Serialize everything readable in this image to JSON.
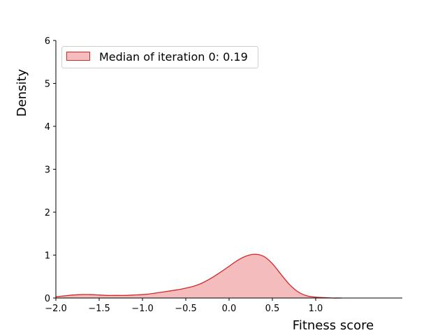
{
  "chart_data": {
    "type": "area",
    "title": "",
    "xlabel": "Fitness score",
    "ylabel": "Density",
    "xlim": [
      -2.0,
      2.0
    ],
    "ylim": [
      0,
      6
    ],
    "x_ticks": [
      "−2.0",
      "−1.5",
      "−1.0",
      "−0.5",
      "0.0",
      "0.5",
      "1.0"
    ],
    "y_ticks": [
      "0",
      "1",
      "2",
      "3",
      "4",
      "5",
      "6"
    ],
    "grid": false,
    "legend_position": "upper left",
    "series": [
      {
        "name": "Median of iteration 0: 0.19",
        "color": "#d62728",
        "fill": "#f4bcbc",
        "x": [
          -2.0,
          -1.9,
          -1.8,
          -1.7,
          -1.6,
          -1.5,
          -1.4,
          -1.3,
          -1.2,
          -1.1,
          -1.0,
          -0.9,
          -0.8,
          -0.7,
          -0.6,
          -0.5,
          -0.4,
          -0.3,
          -0.2,
          -0.1,
          0.0,
          0.1,
          0.2,
          0.3,
          0.4,
          0.5,
          0.6,
          0.7,
          0.8,
          0.9,
          1.0,
          1.1,
          1.2,
          1.3
        ],
        "values": [
          0.03,
          0.05,
          0.07,
          0.08,
          0.08,
          0.07,
          0.06,
          0.06,
          0.06,
          0.07,
          0.08,
          0.1,
          0.13,
          0.16,
          0.19,
          0.23,
          0.28,
          0.36,
          0.47,
          0.6,
          0.74,
          0.88,
          0.98,
          1.02,
          0.97,
          0.8,
          0.55,
          0.31,
          0.14,
          0.05,
          0.02,
          0.01,
          0.0,
          0.0
        ]
      }
    ]
  },
  "legend": {
    "label": "Median of iteration 0: 0.19"
  },
  "axes": {
    "xlabel": "Fitness score",
    "ylabel": "Density"
  }
}
